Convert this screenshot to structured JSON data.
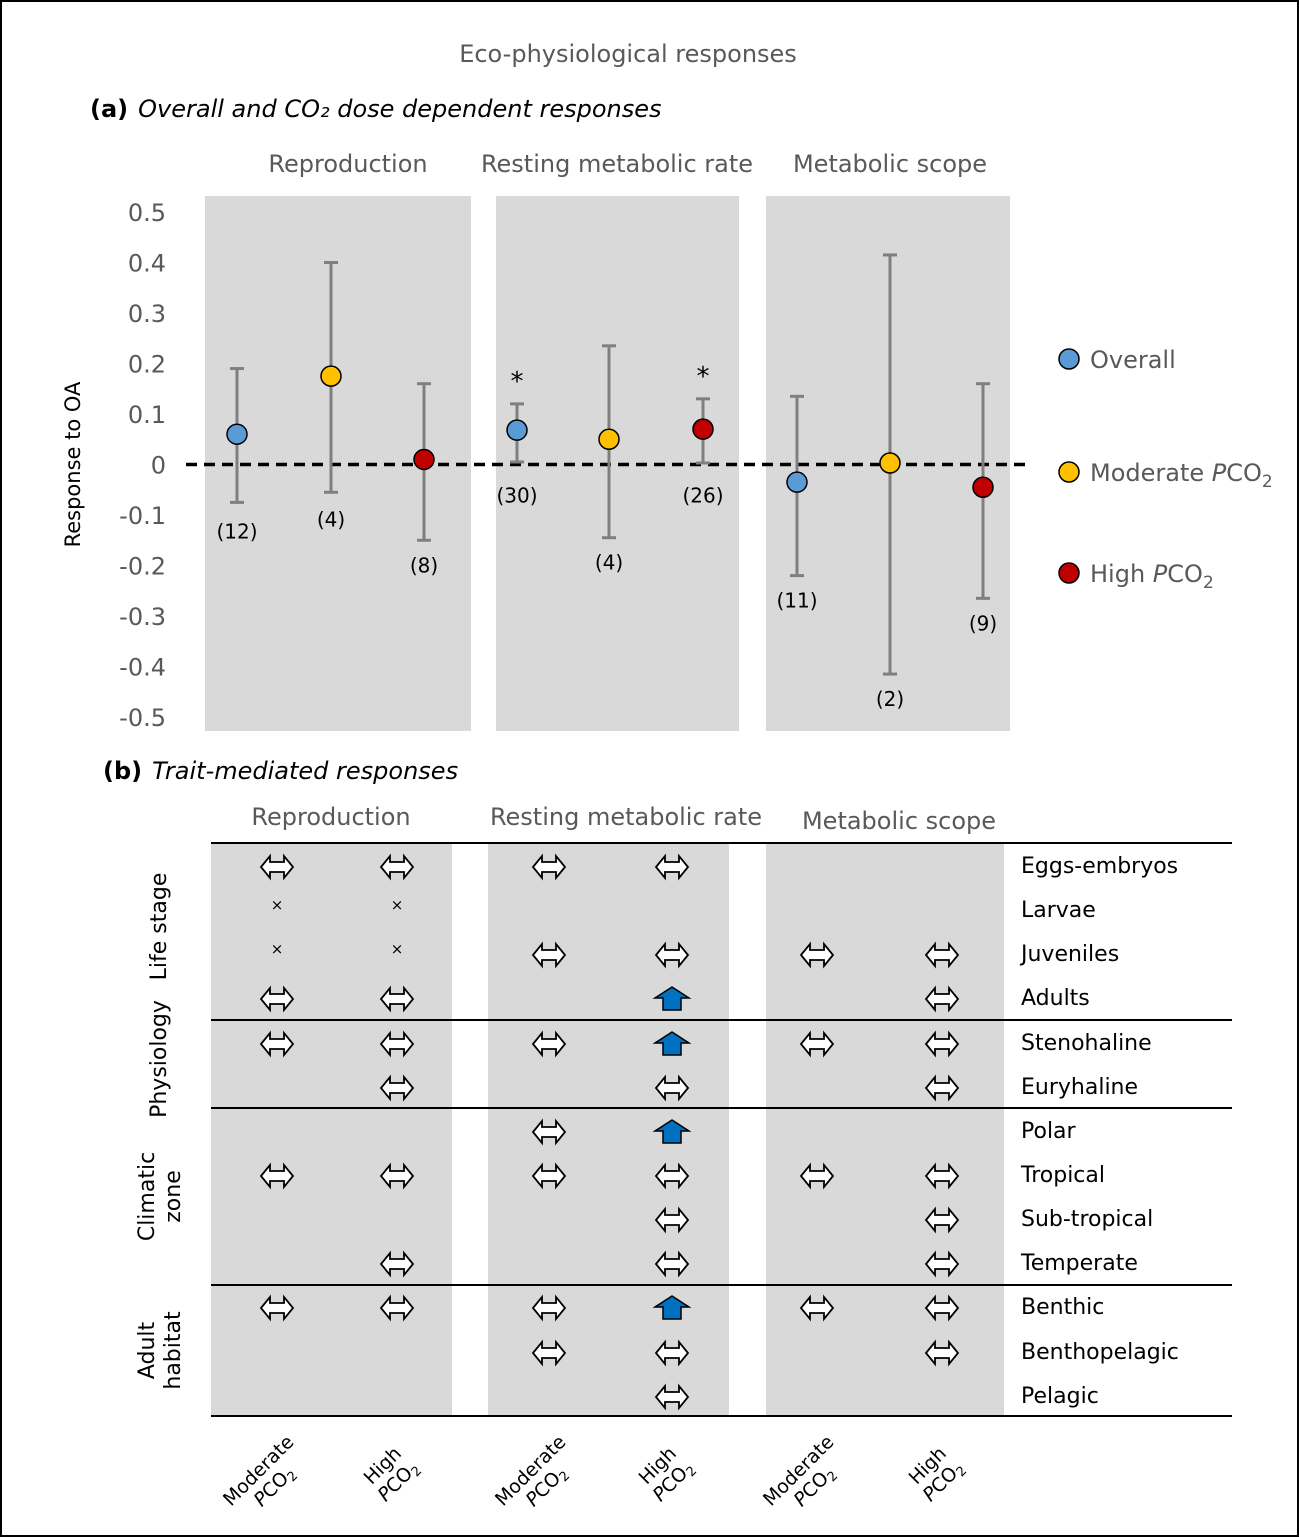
{
  "figure": {
    "title": "Eco-physiological responses",
    "panel_a": {
      "letter": "(a)",
      "title": "Overall and CO₂ dose dependent responses"
    },
    "panel_b": {
      "letter": "(b)",
      "title": "Trait-mediated responses"
    },
    "asterisk": "*"
  },
  "chart_data": [
    {
      "type": "scatter",
      "subtype": "point-with-error-bars",
      "title": "Overall and CO₂ dose dependent responses",
      "ylabel": "Response to OA",
      "ylim": [
        -0.5,
        0.5
      ],
      "yticks": [
        0.5,
        0.4,
        0.3,
        0.2,
        0.1,
        0,
        -0.1,
        -0.2,
        -0.3,
        -0.4,
        -0.5
      ],
      "yticklabels": [
        "0.5",
        "0.4",
        "0.3",
        "0.2",
        "0.1",
        "0",
        "-0.1",
        "-0.2",
        "-0.3",
        "-0.4",
        "-0.5"
      ],
      "panels": [
        "Reproduction",
        "Resting metabolic rate",
        "Metabolic scope"
      ],
      "legend": {
        "position": "right",
        "entries": [
          {
            "name": "Overall",
            "pre": "Overall",
            "italic": "",
            "post": "",
            "sub": "",
            "color": "#5b9bd5"
          },
          {
            "name": "Moderate PCO2",
            "pre": "Moderate ",
            "italic": "P",
            "post": "CO",
            "sub": "2",
            "color": "#ffc000"
          },
          {
            "name": "High PCO2",
            "pre": "High ",
            "italic": "P",
            "post": "CO",
            "sub": "2",
            "color": "#c00000"
          }
        ]
      },
      "reference_line": 0,
      "series": [
        {
          "name": "Overall",
          "color": "#5b9bd5",
          "points": [
            {
              "panel": "Reproduction",
              "value": 0.06,
              "lower": -0.075,
              "upper": 0.19,
              "n": "(12)",
              "significant": false
            },
            {
              "panel": "Resting metabolic rate",
              "value": 0.068,
              "lower": 0.005,
              "upper": 0.12,
              "n": "(30)",
              "significant": true
            },
            {
              "panel": "Metabolic scope",
              "value": -0.035,
              "lower": -0.22,
              "upper": 0.135,
              "n": "(11)",
              "significant": false
            }
          ]
        },
        {
          "name": "Moderate PCO2",
          "color": "#ffc000",
          "points": [
            {
              "panel": "Reproduction",
              "value": 0.175,
              "lower": -0.055,
              "upper": 0.4,
              "n": "(4)",
              "significant": false
            },
            {
              "panel": "Resting metabolic rate",
              "value": 0.05,
              "lower": -0.145,
              "upper": 0.235,
              "n": "(4)",
              "significant": false
            },
            {
              "panel": "Metabolic scope",
              "value": 0.003,
              "lower": -0.415,
              "upper": 0.415,
              "n": "(2)",
              "significant": false
            }
          ]
        },
        {
          "name": "High PCO2",
          "color": "#c00000",
          "points": [
            {
              "panel": "Reproduction",
              "value": 0.01,
              "lower": -0.15,
              "upper": 0.16,
              "n": "(8)",
              "significant": false
            },
            {
              "panel": "Resting metabolic rate",
              "value": 0.07,
              "lower": 0.003,
              "upper": 0.13,
              "n": "(26)",
              "significant": true
            },
            {
              "panel": "Metabolic scope",
              "value": -0.045,
              "lower": -0.265,
              "upper": 0.16,
              "n": "(9)",
              "significant": false
            }
          ]
        }
      ]
    },
    {
      "type": "table",
      "title": "Trait-mediated responses",
      "panels": [
        "Reproduction",
        "Resting metabolic rate",
        "Metabolic scope"
      ],
      "columns": [
        {
          "panel": "Reproduction",
          "pre": "Moderate",
          "italic": "P",
          "post": "CO",
          "sub": "2"
        },
        {
          "panel": "Reproduction",
          "pre": "High",
          "italic": "P",
          "post": "CO",
          "sub": "2"
        },
        {
          "panel": "Resting metabolic rate",
          "pre": "Moderate",
          "italic": "P",
          "post": "CO",
          "sub": "2"
        },
        {
          "panel": "Resting metabolic rate",
          "pre": "High",
          "italic": "P",
          "post": "CO",
          "sub": "2"
        },
        {
          "panel": "Metabolic scope",
          "pre": "Moderate",
          "italic": "P",
          "post": "CO",
          "sub": "2"
        },
        {
          "panel": "Metabolic scope",
          "pre": "High",
          "italic": "P",
          "post": "CO",
          "sub": "2"
        }
      ],
      "symbol_legend": {
        "neutral": "⇔",
        "increase": "up-arrow",
        "not_tested": "×"
      },
      "groups": [
        {
          "name": "Life stage",
          "lines": [
            "Life stage"
          ],
          "rows": [
            {
              "label": "Eggs-embryos",
              "cells": [
                "neutral",
                "neutral",
                "neutral",
                "neutral",
                "",
                ""
              ]
            },
            {
              "label": "Larvae",
              "cells": [
                "not_tested",
                "not_tested",
                "",
                "",
                "",
                ""
              ]
            },
            {
              "label": "Juveniles",
              "cells": [
                "not_tested",
                "not_tested",
                "neutral",
                "neutral",
                "neutral",
                "neutral"
              ]
            },
            {
              "label": "Adults",
              "cells": [
                "neutral",
                "neutral",
                "",
                "increase",
                "",
                "neutral"
              ]
            }
          ]
        },
        {
          "name": "Physiology",
          "lines": [
            "Physiology"
          ],
          "rows": [
            {
              "label": "Stenohaline",
              "cells": [
                "neutral",
                "neutral",
                "neutral",
                "increase",
                "neutral",
                "neutral"
              ]
            },
            {
              "label": "Euryhaline",
              "cells": [
                "",
                "neutral",
                "",
                "neutral",
                "",
                "neutral"
              ]
            }
          ]
        },
        {
          "name": "Climatic zone",
          "lines": [
            "Climatic",
            "zone"
          ],
          "rows": [
            {
              "label": "Polar",
              "cells": [
                "",
                "",
                "neutral",
                "increase",
                "",
                ""
              ]
            },
            {
              "label": "Tropical",
              "cells": [
                "neutral",
                "neutral",
                "neutral",
                "neutral",
                "neutral",
                "neutral"
              ]
            },
            {
              "label": "Sub-tropical",
              "cells": [
                "",
                "",
                "",
                "neutral",
                "",
                "neutral"
              ]
            },
            {
              "label": "Temperate",
              "cells": [
                "",
                "neutral",
                "",
                "neutral",
                "",
                "neutral"
              ]
            }
          ]
        },
        {
          "name": "Adult habitat",
          "lines": [
            "Adult",
            "habitat"
          ],
          "rows": [
            {
              "label": "Benthic",
              "cells": [
                "neutral",
                "neutral",
                "neutral",
                "increase",
                "neutral",
                "neutral"
              ]
            },
            {
              "label": "Benthopelagic",
              "cells": [
                "",
                "",
                "neutral",
                "neutral",
                "",
                "neutral"
              ]
            },
            {
              "label": "Pelagic",
              "cells": [
                "",
                "",
                "",
                "neutral",
                "",
                ""
              ]
            }
          ]
        }
      ]
    }
  ],
  "colors": {
    "panel_bg": "#d9d9d9",
    "text_grey": "#595959",
    "whisker": "#7f7f7f",
    "arrow_blue": "#0070c0"
  }
}
